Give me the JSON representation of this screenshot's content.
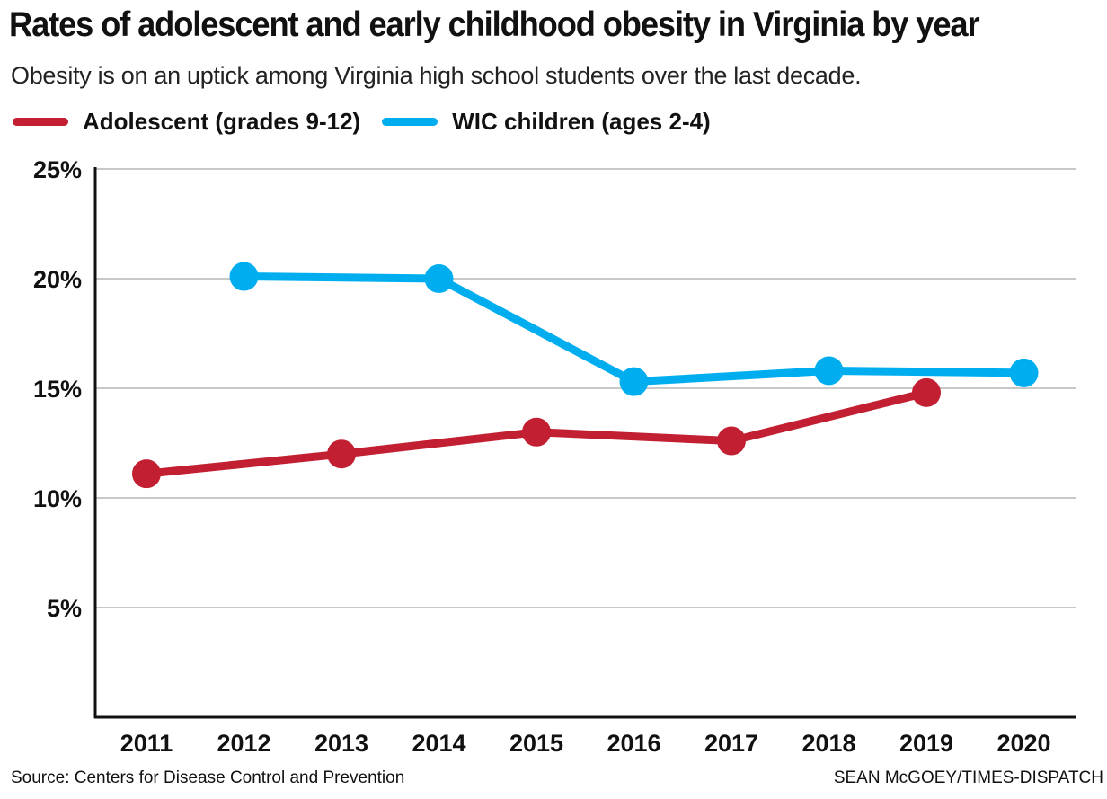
{
  "header": {
    "title": "Rates of adolescent and early childhood obesity in Virginia by year",
    "subtitle": "Obesity is on an uptick among Virginia high school students over the last decade."
  },
  "footer": {
    "source": "Source: Centers for Disease Control and Prevention",
    "credit": "SEAN McGOEY/TIMES-DISPATCH"
  },
  "colors": {
    "adolescent": "#c21f32",
    "wic": "#00aeef",
    "grid": "#c8c8c8",
    "axis": "#111111"
  },
  "chart_data": {
    "type": "line",
    "title": "Rates of adolescent and early childhood obesity in Virginia by year",
    "xlabel": "",
    "ylabel": "",
    "categories": [
      "2011",
      "2012",
      "2013",
      "2014",
      "2015",
      "2016",
      "2017",
      "2018",
      "2019",
      "2020"
    ],
    "y_ticks": [
      5,
      10,
      15,
      20,
      25
    ],
    "y_tick_labels": [
      "5%",
      "10%",
      "15%",
      "20%",
      "25%"
    ],
    "ylim": [
      0,
      25
    ],
    "grid": true,
    "legend_position": "top-left",
    "series": [
      {
        "name": "Adolescent (grades 9-12)",
        "color": "#c21f32",
        "values": [
          11.1,
          null,
          12.0,
          null,
          13.0,
          null,
          12.6,
          null,
          14.8,
          null
        ]
      },
      {
        "name": "WIC children (ages 2-4)",
        "color": "#00aeef",
        "values": [
          null,
          20.1,
          null,
          20.0,
          null,
          15.3,
          null,
          15.8,
          null,
          15.7
        ]
      }
    ]
  }
}
